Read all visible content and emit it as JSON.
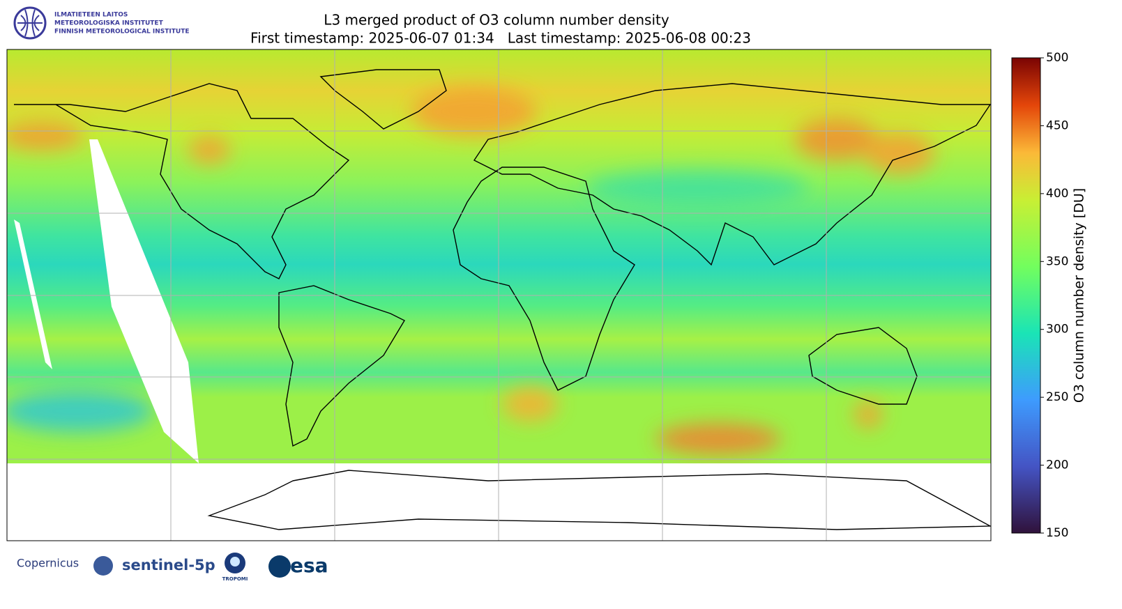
{
  "header": {
    "institute": [
      "ILMATIETEEN LAITOS",
      "METEOROLOGISKA INSTITUTET",
      "FINNISH METEOROLOGICAL INSTITUTE"
    ],
    "title": "L3 merged product of O3 column number density",
    "subtitle": "First timestamp: 2025-06-07 01:34   Last timestamp: 2025-06-08 00:23"
  },
  "colorbar": {
    "label": "O3 column number density [DU]",
    "lim": [
      150,
      500
    ],
    "ticks": [
      150,
      200,
      250,
      300,
      350,
      400,
      450,
      500
    ]
  },
  "logos": [
    "Copernicus",
    "sentinel-5p",
    "TROPOMI",
    "esa"
  ]
}
